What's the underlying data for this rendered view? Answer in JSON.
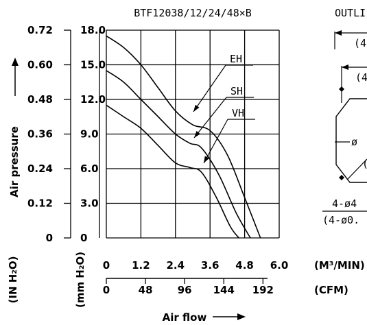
{
  "chart_data": {
    "type": "line",
    "title": "BTF12038/12/24/48×B",
    "ylabel": "Air pressure",
    "xlabel": "Air flow",
    "outline_label": "OUTLI",
    "y_inh2o_ticks": [
      "0.72",
      "0.60",
      "0.48",
      "0.36",
      "0.24",
      "0.12",
      "0"
    ],
    "y_mmh2o_ticks": [
      "18.0",
      "15.0",
      "12.0",
      "9.0",
      "6.0",
      "3.0",
      "0"
    ],
    "y_inh2o_unit": "(IN H₂O)",
    "y_mmh2o_unit": "(mm H₂O)",
    "x_m3min_ticks": [
      "0",
      "1.2",
      "2.4",
      "3.6",
      "4.8",
      "6.0"
    ],
    "x_m3min_unit": "(M³/MIN)",
    "x_cfm_ticks": [
      "0",
      "48",
      "96",
      "144",
      "192"
    ],
    "x_cfm_unit": "(CFM)",
    "ylim": [
      0,
      18
    ],
    "xlim": [
      0,
      6
    ],
    "grid": true,
    "series": [
      {
        "name": "EH",
        "x": [
          0,
          0.6,
          1.2,
          1.8,
          2.4,
          3.0,
          3.6,
          4.2,
          4.8,
          5.35
        ],
        "y": [
          17.5,
          16.5,
          15.0,
          13.0,
          11.0,
          9.8,
          9.3,
          7.2,
          3.5,
          0
        ]
      },
      {
        "name": "SH",
        "x": [
          0,
          0.6,
          1.2,
          1.8,
          2.4,
          2.9,
          3.3,
          3.9,
          4.5,
          5.0
        ],
        "y": [
          14.5,
          13.5,
          12.0,
          10.5,
          9.0,
          8.2,
          7.8,
          5.5,
          2.2,
          0
        ]
      },
      {
        "name": "VH",
        "x": [
          0,
          0.6,
          1.2,
          1.8,
          2.4,
          2.9,
          3.3,
          3.8,
          4.3,
          4.6
        ],
        "y": [
          11.5,
          10.5,
          9.5,
          8.0,
          6.5,
          6.1,
          5.7,
          3.6,
          1.0,
          0
        ]
      }
    ],
    "outline_texts": [
      "(4",
      "(4",
      "ø",
      "(",
      "4-ø4",
      "(4-ø0."
    ]
  }
}
